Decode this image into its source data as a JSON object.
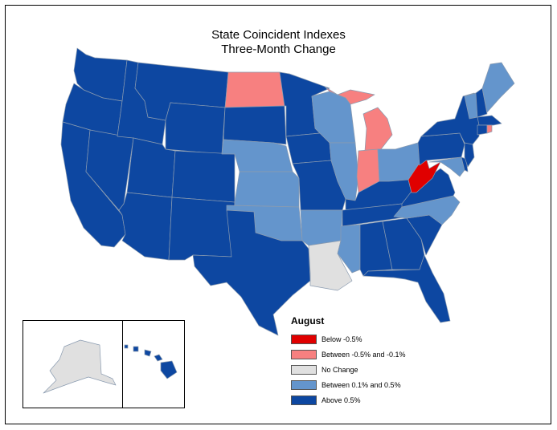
{
  "title_line1": "State Coincident Indexes",
  "title_line2": "Three-Month Change",
  "legend": {
    "title": "August",
    "items": [
      {
        "label": "Below -0.5%",
        "color": "#e00000"
      },
      {
        "label": "Between -0.5% and -0.1%",
        "color": "#f78080"
      },
      {
        "label": "No Change",
        "color": "#e0e0e0"
      },
      {
        "label": "Between 0.1% and 0.5%",
        "color": "#6495cc"
      },
      {
        "label": "Above 0.5%",
        "color": "#0d47a1"
      }
    ]
  },
  "state_categories": {
    "below_neg_0_5": [
      "WV"
    ],
    "between_neg_0_5_and_neg_0_1": [
      "ND",
      "MI",
      "IN",
      "RI"
    ],
    "no_change": [
      "LA",
      "AK"
    ],
    "between_0_1_and_0_5": [
      "NE",
      "KS",
      "OK",
      "AR",
      "MS",
      "IL",
      "WI",
      "OH",
      "NC",
      "ME",
      "VT",
      "MD"
    ],
    "above_0_5": [
      "WA",
      "OR",
      "CA",
      "NV",
      "ID",
      "MT",
      "WY",
      "UT",
      "AZ",
      "CO",
      "NM",
      "TX",
      "SD",
      "MN",
      "IA",
      "MO",
      "KY",
      "TN",
      "AL",
      "GA",
      "FL",
      "SC",
      "VA",
      "PA",
      "NY",
      "NJ",
      "DE",
      "CT",
      "MA",
      "NH",
      "HI"
    ]
  }
}
